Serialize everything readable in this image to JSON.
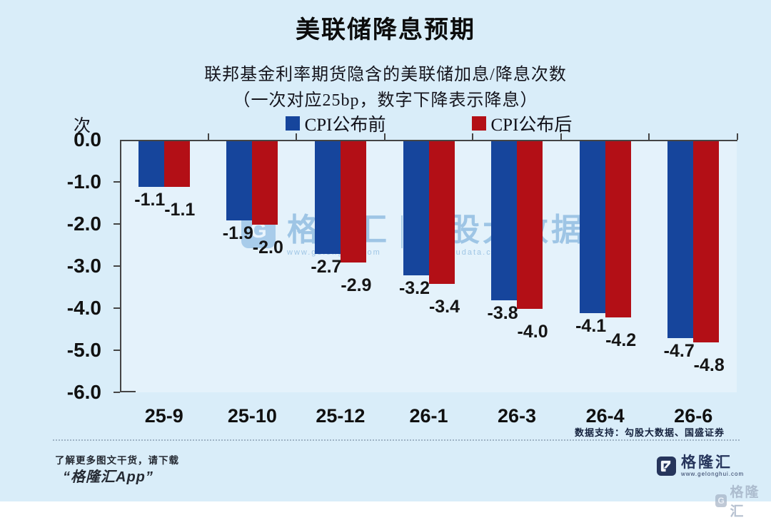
{
  "header": {
    "title": "美联储降息预期",
    "subtitle_line1": "联邦基金利率期货隐含的美联储加息/降息次数",
    "subtitle_line2": "（一次对应25bp，数字下降表示降息）",
    "unit_label": "次"
  },
  "chart_data": {
    "type": "bar",
    "title": "联邦基金利率期货隐含的美联储加息/降息次数",
    "subtitle": "（一次对应25bp，数字下降表示降息）",
    "categories": [
      "25-9",
      "25-10",
      "25-12",
      "26-1",
      "26-3",
      "26-4",
      "26-6"
    ],
    "series": [
      {
        "name": "CPI公布前",
        "color": "#16459c",
        "values": [
          -1.1,
          -1.9,
          -2.7,
          -3.2,
          -3.8,
          -4.1,
          -4.7
        ]
      },
      {
        "name": "CPI公布后",
        "color": "#b30f16",
        "values": [
          -1.1,
          -2.0,
          -2.9,
          -3.4,
          -4.0,
          -4.2,
          -4.8
        ]
      }
    ],
    "xlabel": "",
    "ylabel": "次",
    "ylim": [
      -6.0,
      0.0
    ],
    "ytick_step": 1.0,
    "grid": false,
    "legend_position": "top",
    "data_labels": true
  },
  "colors": {
    "background": "#d9edf9",
    "plot_background": "#e4f2fb",
    "axis": "#454545",
    "series_before": "#16459c",
    "series_after": "#b30f16",
    "brand_navy": "#26355c",
    "watermark_blue": "rgba(146,189,224,0.85)"
  },
  "watermark": {
    "icon_letter": "G",
    "brand": "格隆汇",
    "brand_url": "www.gelonghui.com",
    "partner": "勾股大数据",
    "partner_url": "www.gogudata.com"
  },
  "footer": {
    "source_note": "数据支持：勾股大数据、国盛证券",
    "promo_line1": "了解更多图文干货，请下载",
    "promo_line2": "“格隆汇App”",
    "brand_icon_letter": "G",
    "brand_name": "格隆汇",
    "brand_url": "www.gelonghui.com",
    "corner_icon_letter": "G",
    "corner_watermark": "格隆汇"
  }
}
